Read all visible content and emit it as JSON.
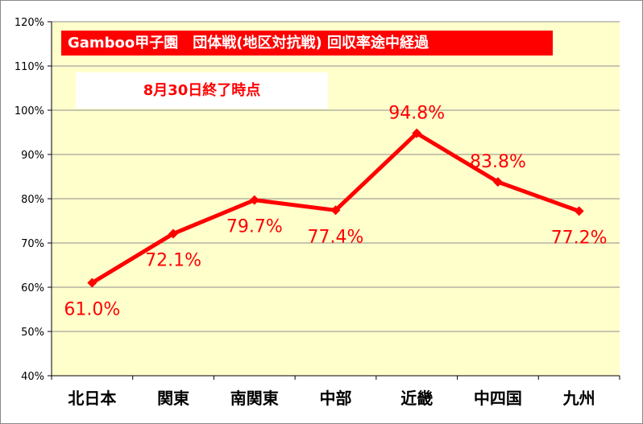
{
  "chart_data": {
    "type": "line",
    "title": "Gamboo甲子園　団体戦(地区対抗戦) 回収率途中経過",
    "subtitle": "8月30日終了時点",
    "categories": [
      "北日本",
      "関東",
      "南関東",
      "中部",
      "近畿",
      "中四国",
      "九州"
    ],
    "series": [
      {
        "values": [
          61.0,
          72.1,
          79.7,
          77.4,
          94.8,
          83.8,
          77.2
        ]
      }
    ],
    "data_labels": [
      "61.0%",
      "72.1%",
      "79.7%",
      "77.4%",
      "94.8%",
      "83.8%",
      "77.2%"
    ],
    "yticks": [
      "40%",
      "50%",
      "60%",
      "70%",
      "80%",
      "90%",
      "100%",
      "110%",
      "120%"
    ],
    "ylim": [
      40,
      120
    ],
    "grid": true,
    "legend": "none",
    "colors": {
      "line": "#ff0000",
      "plot_background": "#ffffcc",
      "title_background": "#ff0000",
      "title_text": "#ffffff",
      "subtitle_text": "#ff0000",
      "gridline": "#8c8c8c"
    }
  }
}
